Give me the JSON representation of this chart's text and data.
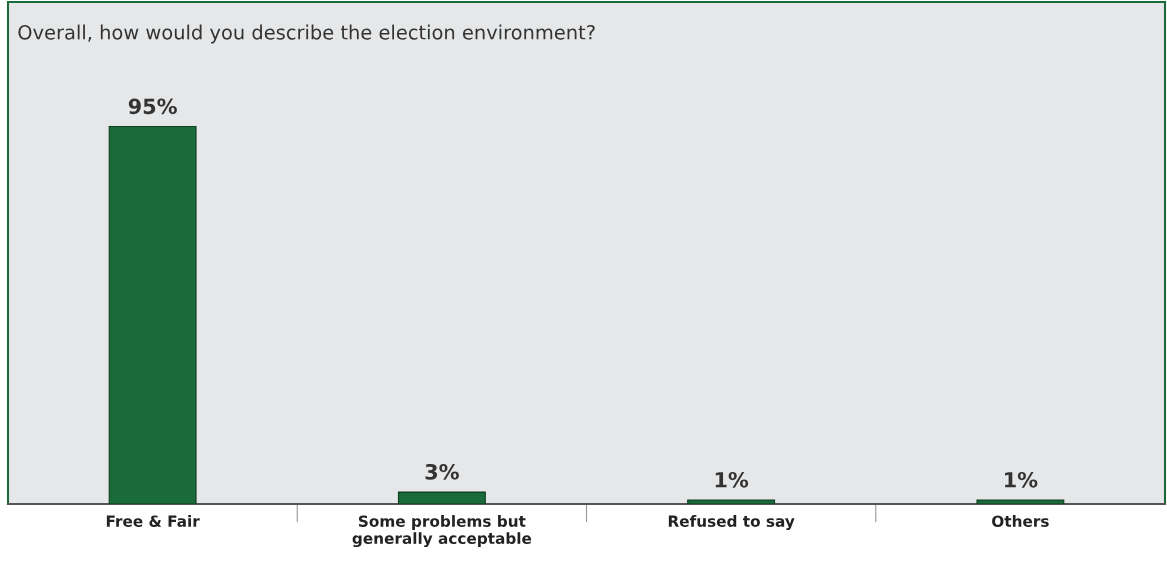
{
  "chart_data": {
    "type": "bar",
    "title": "Overall, how would you describe the election environment?",
    "categories": [
      "Free & Fair",
      "Some problems but\ngenerally acceptable",
      "Refused to say",
      "Others"
    ],
    "values": [
      95,
      3,
      1,
      1
    ],
    "value_labels": [
      "95%",
      "3%",
      "1%",
      "1%"
    ],
    "color": "#1b6b3a",
    "grid": false,
    "legend": false
  }
}
